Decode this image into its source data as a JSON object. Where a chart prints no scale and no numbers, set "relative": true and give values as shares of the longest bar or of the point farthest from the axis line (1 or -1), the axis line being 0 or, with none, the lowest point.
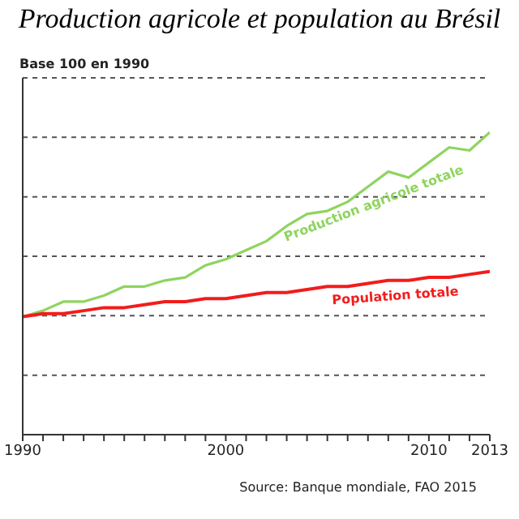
{
  "chart_data": {
    "type": "line",
    "title": "Production agricole et population au Brésil",
    "ylabel": "Base 100 en 1990",
    "relative": true,
    "grid": "y",
    "line_style": "solid",
    "marker": "none",
    "x": [
      1990,
      1991,
      1992,
      1993,
      1994,
      1995,
      1996,
      1997,
      1998,
      1999,
      2000,
      2001,
      2002,
      2003,
      2004,
      2005,
      2006,
      2007,
      2008,
      2009,
      2010,
      2011,
      2012,
      2013
    ],
    "xlim": [
      1990,
      2013
    ],
    "xticks": [
      1990,
      {
        "value": 1991,
        "label": null
      },
      {
        "value": 1992,
        "label": null
      },
      {
        "value": 1993,
        "label": null
      },
      {
        "value": 1994,
        "label": null
      },
      {
        "value": 1995,
        "label": null
      },
      {
        "value": 1996,
        "label": null
      },
      {
        "value": 1997,
        "label": null
      },
      {
        "value": 1998,
        "label": null
      },
      {
        "value": 1999,
        "label": null
      },
      2000,
      {
        "value": 2001,
        "label": null
      },
      {
        "value": 2002,
        "label": null
      },
      {
        "value": 2003,
        "label": null
      },
      {
        "value": 2004,
        "label": null
      },
      {
        "value": 2005,
        "label": null
      },
      {
        "value": 2006,
        "label": null
      },
      {
        "value": 2007,
        "label": null
      },
      {
        "value": 2008,
        "label": null
      },
      {
        "value": 2009,
        "label": null
      },
      2010,
      {
        "value": 2011,
        "label": null
      },
      {
        "value": 2012,
        "label": null
      },
      2013
    ],
    "series": [
      {
        "name": "Production agricole totale",
        "color": "#8fd45f",
        "values": [
          0.39,
          0.41,
          0.44,
          0.44,
          0.46,
          0.49,
          0.49,
          0.51,
          0.52,
          0.56,
          0.58,
          0.61,
          0.64,
          0.69,
          0.73,
          0.74,
          0.77,
          0.82,
          0.87,
          0.85,
          0.9,
          0.95,
          0.94,
          1
        ]
      },
      {
        "name": "Population totale",
        "color": "#f21c1c",
        "values": [
          0.39,
          0.4,
          0.4,
          0.41,
          0.42,
          0.42,
          0.43,
          0.44,
          0.44,
          0.45,
          0.45,
          0.46,
          0.47,
          0.47,
          0.48,
          0.49,
          0.49,
          0.5,
          0.51,
          0.51,
          0.52,
          0.52,
          0.53,
          0.54
        ]
      }
    ],
    "annotations": [
      "Source: Banque mondiale, FAO 2015"
    ]
  }
}
